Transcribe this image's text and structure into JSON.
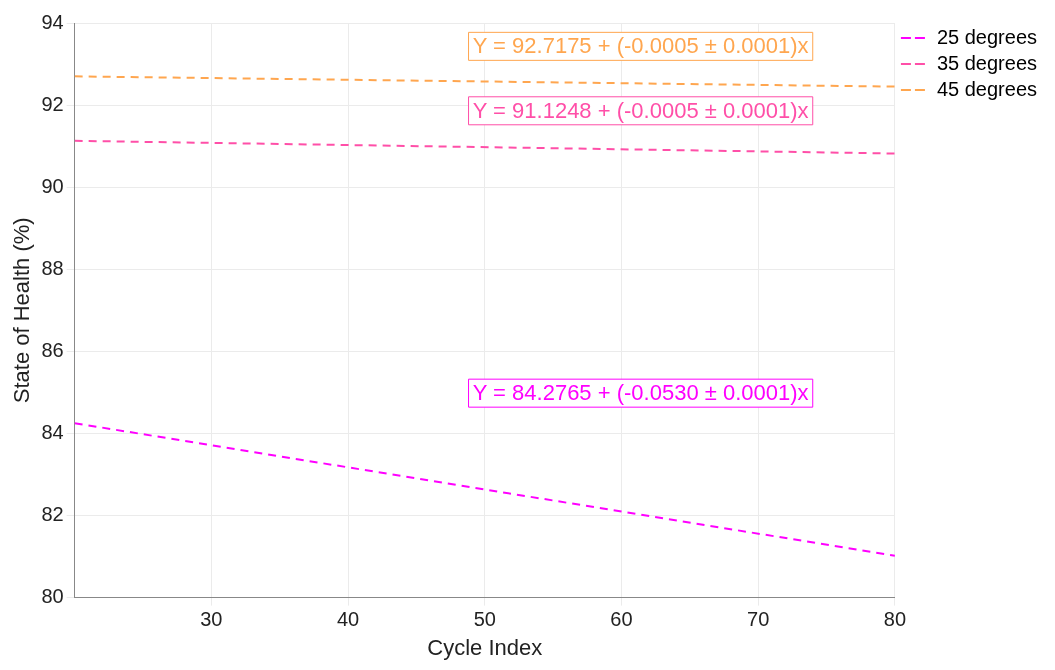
{
  "chart_data": {
    "type": "line",
    "xlabel": "Cycle Index",
    "ylabel": "State of Health (%)",
    "xlim": [
      20,
      80
    ],
    "xticks": [
      30,
      40,
      50,
      60,
      70,
      80
    ],
    "ylim": [
      80,
      94
    ],
    "yticks": [
      80,
      82,
      84,
      86,
      88,
      90,
      92,
      94
    ],
    "grid": true,
    "legend": "top right",
    "line_style": "dashed",
    "marker": "none",
    "x": [
      20,
      80
    ],
    "series": [
      {
        "name": "25 degrees",
        "color": "#ff00ff",
        "values": [
          84.25,
          81.02
        ]
      },
      {
        "name": "35 degrees",
        "color": "#ff4fa8",
        "values": [
          91.13,
          90.82
        ]
      },
      {
        "name": "45 degrees",
        "color": "#ffa64f",
        "values": [
          92.7,
          92.45
        ]
      }
    ],
    "annotations": [
      "Y = 92.7175 + (-0.0005 ± 0.0001)x",
      "Y = 91.1248 + (-0.0005 ± 0.0001)x",
      "Y = 84.2765 + (-0.0530 ± 0.0001)x"
    ]
  }
}
